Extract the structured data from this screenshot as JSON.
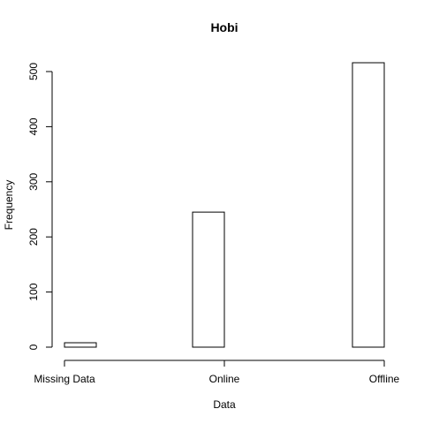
{
  "chart_data": {
    "type": "bar",
    "title": "Hobi",
    "xlabel": "Data",
    "ylabel": "Frequency",
    "categories": [
      "Missing Data",
      "Online",
      "Offline"
    ],
    "values": [
      8,
      245,
      516
    ],
    "ylim": [
      0,
      500
    ],
    "yticks": [
      0,
      100,
      200,
      300,
      400,
      500
    ],
    "grid": false,
    "legend": "none"
  }
}
